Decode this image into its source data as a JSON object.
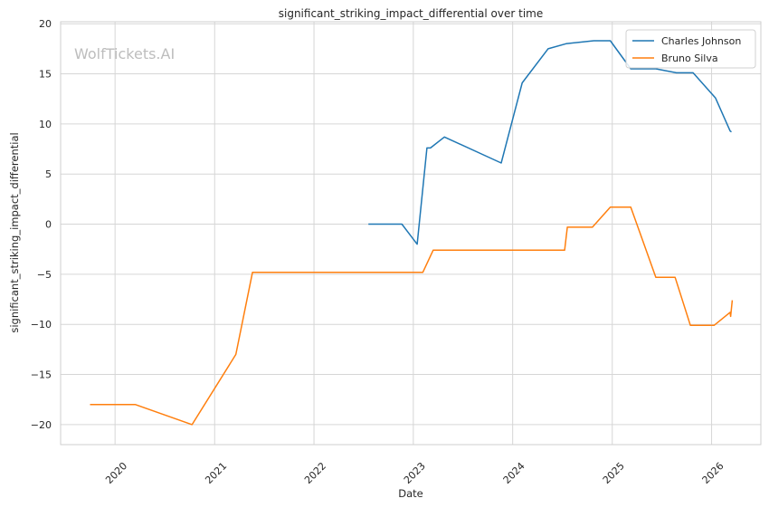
{
  "chart_data": {
    "type": "line",
    "title": "significant_striking_impact_differential over time",
    "xlabel": "Date",
    "ylabel": "significant_striking_impact_differential",
    "watermark": "WolfTickets.AI",
    "xlim": [
      "2019-06-15",
      "2026-07-01"
    ],
    "ylim": [
      -22,
      20.2
    ],
    "xticks": [
      {
        "date": "2020-01-01",
        "label": "2020"
      },
      {
        "date": "2021-01-01",
        "label": "2021"
      },
      {
        "date": "2022-01-01",
        "label": "2022"
      },
      {
        "date": "2023-01-01",
        "label": "2023"
      },
      {
        "date": "2024-01-01",
        "label": "2024"
      },
      {
        "date": "2025-01-01",
        "label": "2025"
      },
      {
        "date": "2026-01-01",
        "label": "2026"
      }
    ],
    "yticks": [
      {
        "value": 20,
        "label": "20"
      },
      {
        "value": 15,
        "label": "15"
      },
      {
        "value": 10,
        "label": "10"
      },
      {
        "value": 5,
        "label": "5"
      },
      {
        "value": 0,
        "label": "0"
      },
      {
        "value": -5,
        "label": "−5"
      },
      {
        "value": -10,
        "label": "−10"
      },
      {
        "value": -15,
        "label": "−15"
      },
      {
        "value": -20,
        "label": "−20"
      }
    ],
    "grid": true,
    "legend_position": "top-right",
    "series": [
      {
        "name": "Charles Johnson",
        "color": "#1f77b4",
        "points": [
          [
            "2022-07-20",
            0.0
          ],
          [
            "2022-11-20",
            0.0
          ],
          [
            "2023-01-15",
            -2.0
          ],
          [
            "2023-02-20",
            7.6
          ],
          [
            "2023-03-05",
            7.6
          ],
          [
            "2023-04-25",
            8.7
          ],
          [
            "2023-11-20",
            6.1
          ],
          [
            "2024-02-05",
            14.1
          ],
          [
            "2024-05-10",
            17.5
          ],
          [
            "2024-07-15",
            18.0
          ],
          [
            "2024-10-25",
            18.3
          ],
          [
            "2024-12-25",
            18.3
          ],
          [
            "2025-03-10",
            15.5
          ],
          [
            "2025-06-10",
            15.5
          ],
          [
            "2025-08-25",
            15.1
          ],
          [
            "2025-10-25",
            15.1
          ],
          [
            "2026-01-15",
            12.6
          ],
          [
            "2026-03-10",
            9.3
          ],
          [
            "2026-03-15",
            9.2
          ]
        ]
      },
      {
        "name": "Bruno Silva",
        "color": "#ff7f0e",
        "points": [
          [
            "2019-10-01",
            -18.0
          ],
          [
            "2020-03-15",
            -18.0
          ],
          [
            "2020-10-10",
            -20.0
          ],
          [
            "2021-03-20",
            -13.0
          ],
          [
            "2021-05-20",
            -4.8
          ],
          [
            "2023-02-05",
            -4.8
          ],
          [
            "2023-03-15",
            -2.6
          ],
          [
            "2024-07-10",
            -2.6
          ],
          [
            "2024-07-20",
            -0.3
          ],
          [
            "2024-10-20",
            -0.3
          ],
          [
            "2024-12-25",
            1.7
          ],
          [
            "2025-03-10",
            1.7
          ],
          [
            "2025-06-10",
            -5.3
          ],
          [
            "2025-08-20",
            -5.3
          ],
          [
            "2025-10-15",
            -10.1
          ],
          [
            "2026-01-10",
            -10.1
          ],
          [
            "2026-03-10",
            -8.8
          ],
          [
            "2026-03-12",
            -9.2
          ],
          [
            "2026-03-18",
            -7.6
          ]
        ]
      }
    ]
  }
}
